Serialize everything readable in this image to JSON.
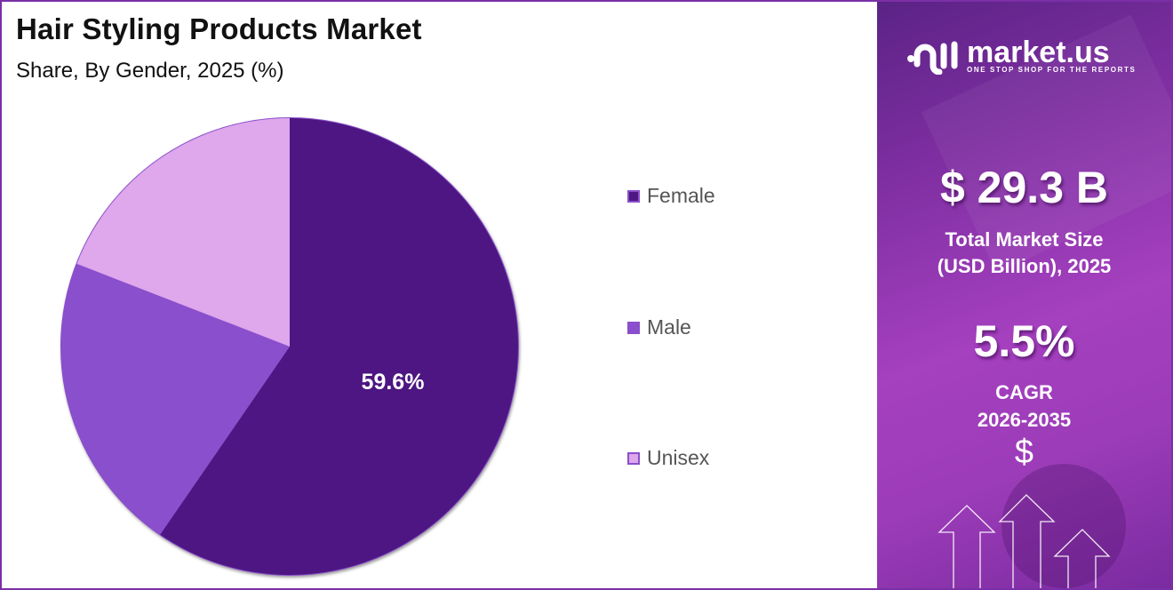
{
  "header": {
    "title": "Hair Styling Products Market",
    "subtitle": "Share, By Gender, 2025 (%)"
  },
  "pie_label": "59.6%",
  "legend": [
    {
      "label": "Female",
      "color": "#4e1782"
    },
    {
      "label": "Male",
      "color": "#8a4fcc"
    },
    {
      "label": "Unisex",
      "color": "#dfa7ec"
    }
  ],
  "sidebar": {
    "logo_name": "market.us",
    "logo_tagline": "ONE STOP SHOP FOR THE REPORTS",
    "market_size": "$ 29.3 B",
    "market_size_label_line1": "Total Market Size",
    "market_size_label_line2": "(USD Billion), 2025",
    "cagr": "5.5%",
    "cagr_label": "CAGR",
    "cagr_period": "2026-2035",
    "currency_symbol": "$"
  },
  "chart_data": {
    "type": "pie",
    "title": "Hair Styling Products Market",
    "subtitle": "Share, By Gender, 2025 (%)",
    "categories": [
      "Female",
      "Male",
      "Unisex"
    ],
    "values": [
      59.6,
      21.3,
      19.1
    ],
    "colors": [
      "#4e1782",
      "#8a4fcc",
      "#dfa7ec"
    ],
    "data_labels": {
      "Female": "59.6%"
    },
    "legend_position": "right"
  }
}
